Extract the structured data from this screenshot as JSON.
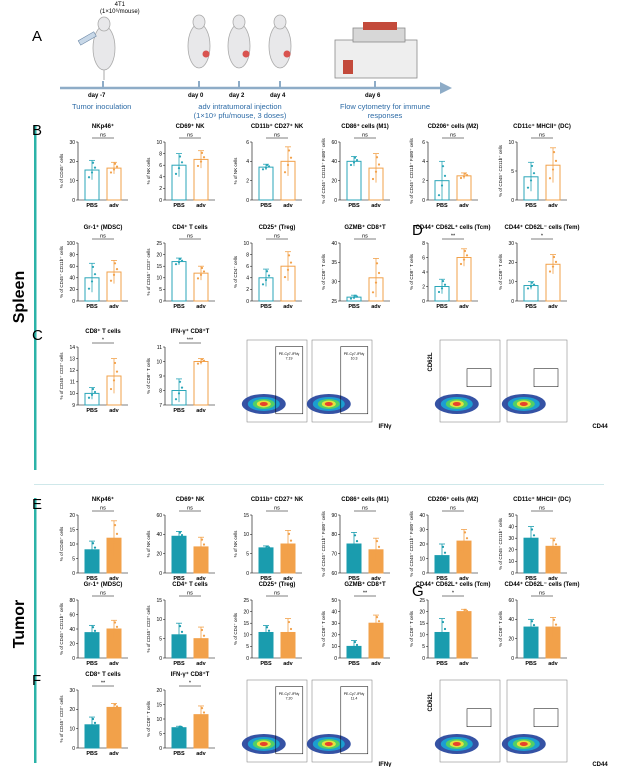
{
  "colors": {
    "spleen": "#2aa6b8",
    "adv": "#f2a14a",
    "tumor_fill": "#1a9cae",
    "accent": "#2bb3a8",
    "timeline": "#8eacc7",
    "timeline_text": "#2d6ba6"
  },
  "panel_letters": [
    "A",
    "B",
    "C",
    "D",
    "E",
    "F",
    "G"
  ],
  "section_labels": {
    "spleen": "Spleen",
    "tumor": "Tumor"
  },
  "timeline": {
    "cell_line": "4T1",
    "cell_dose": "(1×10⁶/mouse)",
    "days": [
      "day -7",
      "day 0",
      "day 2",
      "day 4",
      "day 6"
    ],
    "captions": [
      "Tumor inoculation",
      "adv intratumoral injection",
      "(1×10⁹ pfu/mouse, 3 doses)",
      "Flow cytometry for immune",
      "responses"
    ]
  },
  "flow": {
    "spleen_cd8_gates": [
      "PE-Cy7-IFNγ\n7.19",
      "PE-Cy7-IFNγ\n10.3"
    ],
    "tumor_cd8_gates": [
      "PE-Cy7-IFNγ\n7.20",
      "PE-Cy7-IFNγ\n11.4"
    ],
    "x_ifng": "IFNγ",
    "axis_cd62l": "CD62L",
    "axis_cd44": "CD44"
  },
  "chart_data": [
    {
      "type": "bar",
      "panel": "B",
      "title": "NKp46⁺",
      "ylabel": "% of CD45⁺ cells",
      "categories": [
        "PBS",
        "adv"
      ],
      "values": [
        15.5,
        16.5
      ],
      "errors": [
        5,
        3
      ],
      "ylim": [
        0,
        30
      ],
      "yticks": [
        0,
        10,
        20,
        30
      ],
      "sig": "ns",
      "tissue": "spleen"
    },
    {
      "type": "bar",
      "panel": "B",
      "title": "CD69⁺ NK",
      "ylabel": "% of NK cells",
      "categories": [
        "PBS",
        "adv"
      ],
      "values": [
        6,
        7
      ],
      "errors": [
        2,
        1.5
      ],
      "ylim": [
        0,
        10
      ],
      "yticks": [
        0,
        2,
        4,
        6,
        8,
        10
      ],
      "sig": "ns",
      "tissue": "spleen"
    },
    {
      "type": "bar",
      "panel": "B",
      "title": "CD11b⁺ CD27⁺ NK",
      "ylabel": "% of NK cells",
      "categories": [
        "PBS",
        "adv"
      ],
      "values": [
        3.4,
        4
      ],
      "errors": [
        0.3,
        1.5
      ],
      "ylim": [
        0,
        6
      ],
      "yticks": [
        0,
        2,
        4,
        6
      ],
      "sig": "ns",
      "tissue": "spleen"
    },
    {
      "type": "bar",
      "panel": "B",
      "title": "CD86⁺ cells (M1)",
      "ylabel": "% of CD45⁺ CD11b⁺ F480⁺ cells",
      "categories": [
        "PBS",
        "adv"
      ],
      "values": [
        40,
        33
      ],
      "errors": [
        5,
        15
      ],
      "ylim": [
        0,
        60
      ],
      "yticks": [
        0,
        20,
        40,
        60
      ],
      "sig": "ns",
      "tissue": "spleen"
    },
    {
      "type": "bar",
      "panel": "B",
      "title": "CD206⁺ cells (M2)",
      "ylabel": "% of CD45⁺ CD11b⁺ F480⁺ cells",
      "categories": [
        "PBS",
        "adv"
      ],
      "values": [
        2,
        2.5
      ],
      "errors": [
        2,
        0.3
      ],
      "ylim": [
        0,
        6
      ],
      "yticks": [
        0,
        2,
        4,
        6
      ],
      "sig": "ns",
      "tissue": "spleen"
    },
    {
      "type": "bar",
      "panel": "B",
      "title": "CD11c⁺ MHCII⁺ (DC)",
      "ylabel": "% of CD45⁺ CD11b⁺ cells",
      "categories": [
        "PBS",
        "adv"
      ],
      "values": [
        4,
        6
      ],
      "errors": [
        2.5,
        3
      ],
      "ylim": [
        0,
        10
      ],
      "yticks": [
        0,
        5,
        10
      ],
      "sig": "ns",
      "tissue": "spleen"
    },
    {
      "type": "bar",
      "panel": "B",
      "title": "Gr-1⁺ (MDSC)",
      "ylabel": "% of CD45⁺ CD11b⁺ cells",
      "categories": [
        "PBS",
        "adv"
      ],
      "values": [
        40,
        50
      ],
      "errors": [
        25,
        20
      ],
      "ylim": [
        0,
        100
      ],
      "yticks": [
        0,
        20,
        40,
        60,
        80,
        100
      ],
      "sig": "ns",
      "tissue": "spleen"
    },
    {
      "type": "bar",
      "panel": "B",
      "title": "CD4⁺ T cells",
      "ylabel": "% of CD45⁺ CD3⁺ cells",
      "categories": [
        "PBS",
        "adv"
      ],
      "values": [
        17,
        12
      ],
      "errors": [
        1.5,
        3
      ],
      "ylim": [
        0,
        25
      ],
      "yticks": [
        0,
        5,
        10,
        15,
        20,
        25
      ],
      "sig": "ns",
      "tissue": "spleen"
    },
    {
      "type": "bar",
      "panel": "B",
      "title": "CD25⁺ (Treg)",
      "ylabel": "% of CD4⁺ cells",
      "categories": [
        "PBS",
        "adv"
      ],
      "values": [
        4,
        6
      ],
      "errors": [
        1.5,
        2.5
      ],
      "ylim": [
        0,
        10
      ],
      "yticks": [
        0,
        2,
        4,
        6,
        8,
        10
      ],
      "sig": "ns",
      "tissue": "spleen"
    },
    {
      "type": "bar",
      "panel": "B",
      "title": "GZMB⁺ CD8⁺T",
      "ylabel": "% of CD8⁺ T cells",
      "categories": [
        "PBS",
        "adv"
      ],
      "values": [
        26,
        31
      ],
      "errors": [
        0.5,
        5
      ],
      "ylim": [
        25,
        40
      ],
      "yticks": [
        25,
        30,
        35,
        40
      ],
      "sig": "ns",
      "tissue": "spleen"
    },
    {
      "type": "bar",
      "panel": "D",
      "title": "CD44⁺ CD62L⁺ cells (Tcm)",
      "ylabel": "% of CD8⁺ T cells",
      "categories": [
        "PBS",
        "adv"
      ],
      "values": [
        2,
        6
      ],
      "errors": [
        1,
        1.2
      ],
      "ylim": [
        0,
        8
      ],
      "yticks": [
        0,
        2,
        4,
        6,
        8
      ],
      "sig": "**",
      "tissue": "spleen"
    },
    {
      "type": "bar",
      "panel": "D",
      "title": "CD44⁺ CD62L⁻ cells (Tem)",
      "ylabel": "% of CD8⁺ T cells",
      "categories": [
        "PBS",
        "adv"
      ],
      "values": [
        8,
        19
      ],
      "errors": [
        2,
        5
      ],
      "ylim": [
        0,
        30
      ],
      "yticks": [
        0,
        10,
        20,
        30
      ],
      "sig": "*",
      "tissue": "spleen"
    },
    {
      "type": "bar",
      "panel": "C",
      "title": "CD8⁺ T cells",
      "ylabel": "% of CD45⁺ CD3⁺ cells",
      "categories": [
        "PBS",
        "adv"
      ],
      "values": [
        10,
        11.5
      ],
      "errors": [
        0.5,
        1.5
      ],
      "ylim": [
        9,
        14
      ],
      "yticks": [
        9,
        10,
        11,
        12,
        13,
        14
      ],
      "sig": "*",
      "tissue": "spleen"
    },
    {
      "type": "bar",
      "panel": "C",
      "title": "IFN-γ⁺ CD8⁺T",
      "ylabel": "% of CD8⁺ T cells",
      "categories": [
        "PBS",
        "adv"
      ],
      "values": [
        8,
        10
      ],
      "errors": [
        0.8,
        0.2
      ],
      "ylim": [
        7,
        11
      ],
      "yticks": [
        7,
        8,
        9,
        10,
        11
      ],
      "sig": "***",
      "tissue": "spleen"
    },
    {
      "type": "bar",
      "panel": "E",
      "title": "NKp46⁺",
      "ylabel": "% of CD45⁺ cells",
      "categories": [
        "PBS",
        "adv"
      ],
      "values": [
        8,
        12
      ],
      "errors": [
        3,
        6
      ],
      "ylim": [
        0,
        20
      ],
      "yticks": [
        0,
        5,
        10,
        15,
        20
      ],
      "sig": "ns",
      "tissue": "tumor"
    },
    {
      "type": "bar",
      "panel": "E",
      "title": "CD69⁺ NK",
      "ylabel": "% of NK cells",
      "categories": [
        "PBS",
        "adv"
      ],
      "values": [
        38,
        27
      ],
      "errors": [
        5,
        10
      ],
      "ylim": [
        0,
        60
      ],
      "yticks": [
        0,
        20,
        40,
        60
      ],
      "sig": "ns",
      "tissue": "tumor"
    },
    {
      "type": "bar",
      "panel": "E",
      "title": "CD11b⁺ CD27⁺ NK",
      "ylabel": "% of NK cells",
      "categories": [
        "PBS",
        "adv"
      ],
      "values": [
        6.5,
        7.5
      ],
      "errors": [
        0.5,
        3.5
      ],
      "ylim": [
        0,
        15
      ],
      "yticks": [
        0,
        5,
        10,
        15
      ],
      "sig": "ns",
      "tissue": "tumor"
    },
    {
      "type": "bar",
      "panel": "E",
      "title": "CD86⁺ cells (M1)",
      "ylabel": "% of CD45⁺ CD11b⁺ F480⁺ cells",
      "categories": [
        "PBS",
        "adv"
      ],
      "values": [
        75,
        72
      ],
      "errors": [
        6,
        6
      ],
      "ylim": [
        60,
        90
      ],
      "yticks": [
        60,
        70,
        80,
        90
      ],
      "sig": "ns",
      "tissue": "tumor"
    },
    {
      "type": "bar",
      "panel": "E",
      "title": "CD206⁺ cells (M2)",
      "ylabel": "% of CD45⁺ CD11b⁺ F480⁺ cells",
      "categories": [
        "PBS",
        "adv"
      ],
      "values": [
        12,
        22
      ],
      "errors": [
        8,
        8
      ],
      "ylim": [
        0,
        40
      ],
      "yticks": [
        0,
        10,
        20,
        30,
        40
      ],
      "sig": "ns",
      "tissue": "tumor"
    },
    {
      "type": "bar",
      "panel": "E",
      "title": "CD11c⁺ MHCII⁺ (DC)",
      "ylabel": "% of CD45⁺ CD11b⁺ cells",
      "categories": [
        "PBS",
        "adv"
      ],
      "values": [
        30,
        23
      ],
      "errors": [
        10,
        7
      ],
      "ylim": [
        0,
        50
      ],
      "yticks": [
        0,
        10,
        20,
        30,
        40,
        50
      ],
      "sig": "ns",
      "tissue": "tumor"
    },
    {
      "type": "bar",
      "panel": "E",
      "title": "Gr-1⁺ (MDSC)",
      "ylabel": "% of CD45⁺ CD11b⁺ cells",
      "categories": [
        "PBS",
        "adv"
      ],
      "values": [
        35,
        40
      ],
      "errors": [
        10,
        12
      ],
      "ylim": [
        0,
        80
      ],
      "yticks": [
        0,
        20,
        40,
        60,
        80
      ],
      "sig": "ns",
      "tissue": "tumor"
    },
    {
      "type": "bar",
      "panel": "E",
      "title": "CD4⁺ T cells",
      "ylabel": "% of CD45⁺ CD3⁺ cells",
      "categories": [
        "PBS",
        "adv"
      ],
      "values": [
        6,
        5
      ],
      "errors": [
        3,
        3
      ],
      "ylim": [
        0,
        15
      ],
      "yticks": [
        0,
        5,
        10,
        15
      ],
      "sig": "ns",
      "tissue": "tumor"
    },
    {
      "type": "bar",
      "panel": "E",
      "title": "CD25⁺ (Treg)",
      "ylabel": "% of CD4⁺ cells",
      "categories": [
        "PBS",
        "adv"
      ],
      "values": [
        11,
        11
      ],
      "errors": [
        3,
        6
      ],
      "ylim": [
        0,
        25
      ],
      "yticks": [
        0,
        5,
        10,
        15,
        20,
        25
      ],
      "sig": "ns",
      "tissue": "tumor"
    },
    {
      "type": "bar",
      "panel": "E",
      "title": "GZMB⁺ CD8⁺T",
      "ylabel": "% of CD8⁺ T cells",
      "categories": [
        "PBS",
        "adv"
      ],
      "values": [
        10,
        30
      ],
      "errors": [
        5,
        7
      ],
      "ylim": [
        0,
        50
      ],
      "yticks": [
        0,
        10,
        20,
        30,
        40,
        50
      ],
      "sig": "**",
      "tissue": "tumor"
    },
    {
      "type": "bar",
      "panel": "G",
      "title": "CD44⁺ CD62L⁺ cells (Tcm)",
      "ylabel": "% of CD8⁺ T cells",
      "categories": [
        "PBS",
        "adv"
      ],
      "values": [
        11,
        20
      ],
      "errors": [
        6,
        1
      ],
      "ylim": [
        0,
        25
      ],
      "yticks": [
        0,
        5,
        10,
        15,
        20,
        25
      ],
      "sig": "*",
      "tissue": "tumor"
    },
    {
      "type": "bar",
      "panel": "G",
      "title": "CD44⁺ CD62L⁻ cells (Tem)",
      "ylabel": "% of CD8⁺ T cells",
      "categories": [
        "PBS",
        "adv"
      ],
      "values": [
        32,
        32
      ],
      "errors": [
        8,
        10
      ],
      "ylim": [
        0,
        60
      ],
      "yticks": [
        0,
        20,
        40,
        60
      ],
      "sig": "ns",
      "tissue": "tumor"
    },
    {
      "type": "bar",
      "panel": "F",
      "title": "CD8⁺ T cells",
      "ylabel": "% of CD45⁺ CD3⁺ cells",
      "categories": [
        "PBS",
        "adv"
      ],
      "values": [
        12,
        21
      ],
      "errors": [
        4,
        2
      ],
      "ylim": [
        0,
        30
      ],
      "yticks": [
        0,
        10,
        20,
        30
      ],
      "sig": "**",
      "tissue": "tumor"
    },
    {
      "type": "bar",
      "panel": "F",
      "title": "IFN-γ⁺ CD8⁺T",
      "ylabel": "% of CD8⁺ T cells",
      "categories": [
        "PBS",
        "adv"
      ],
      "values": [
        7,
        11.5
      ],
      "errors": [
        0.5,
        3
      ],
      "ylim": [
        0,
        20
      ],
      "yticks": [
        0,
        5,
        10,
        15,
        20
      ],
      "sig": "*",
      "tissue": "tumor"
    }
  ]
}
